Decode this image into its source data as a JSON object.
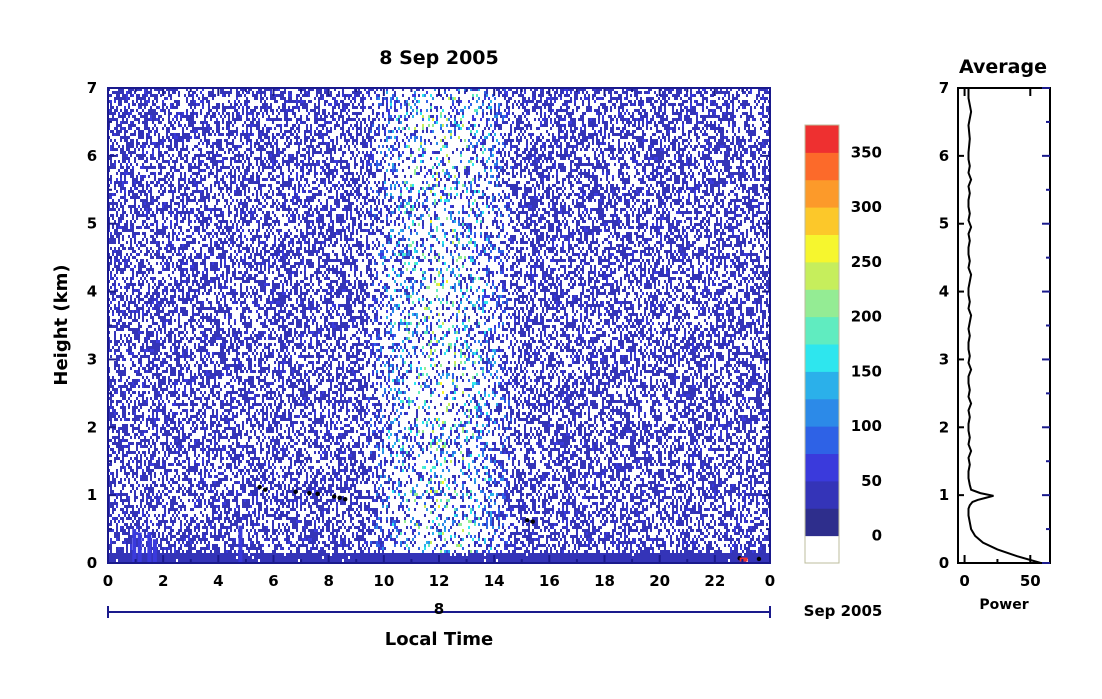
{
  "chart_data": [
    {
      "type": "heatmap",
      "title": "8 Sep 2005",
      "xlabel": "Local Time",
      "ylabel": "Height (km)",
      "xlim": [
        0,
        24
      ],
      "ylim": [
        0,
        7
      ],
      "x_ticks": [
        "0",
        "2",
        "4",
        "6",
        "8",
        "10",
        "12",
        "14",
        "16",
        "18",
        "20",
        "22",
        "0"
      ],
      "y_ticks": [
        "0",
        "1",
        "2",
        "3",
        "4",
        "5",
        "6",
        "7"
      ],
      "date_axis": {
        "day_label": "8",
        "month_year_label": "Sep 2005"
      },
      "colorbar": {
        "ticks": [
          "0",
          "50",
          "100",
          "150",
          "200",
          "250",
          "300",
          "350"
        ],
        "range": [
          -25,
          375
        ],
        "colors": [
          "#ffffff",
          "#2e2e8c",
          "#3434b8",
          "#3a3adc",
          "#2e62e6",
          "#2c8ae8",
          "#2bb0ea",
          "#2ee6ee",
          "#60ecc0",
          "#94ec94",
          "#c6ee5c",
          "#f6f62e",
          "#fcc82a",
          "#fc9a2a",
          "#fc6a2a",
          "#ee3030"
        ]
      },
      "features": {
        "background_level": 25,
        "midday_enhancement_center_hour": 12,
        "midday_enhancement_range_hours": [
          9,
          15
        ],
        "enhanced_level_max": 260,
        "near_ground_layer_top_km": 0.15,
        "near_ground_level": 40
      }
    },
    {
      "type": "line",
      "title": "Average",
      "xlabel": "Power",
      "xlim": [
        -5,
        65
      ],
      "ylim": [
        0,
        7
      ],
      "x_ticks": [
        "0",
        "50"
      ],
      "y_ticks": [
        "0",
        "1",
        "2",
        "3",
        "4",
        "5",
        "6",
        "7"
      ],
      "series": [
        {
          "x": [
            58,
            40,
            25,
            14,
            8,
            5,
            4,
            3,
            3,
            4,
            6,
            10,
            16,
            22,
            12,
            5,
            4,
            3,
            3,
            4,
            3,
            5,
            3,
            4,
            3,
            3,
            4,
            3,
            5,
            3,
            4,
            3,
            3,
            5,
            3,
            4,
            3,
            3,
            4,
            3,
            4,
            5,
            3,
            4,
            3,
            3,
            4,
            5,
            3,
            4,
            3,
            3,
            4,
            3,
            5,
            3,
            4,
            3,
            3,
            4,
            3,
            5,
            3,
            4,
            3,
            3,
            4,
            3,
            5,
            3,
            3
          ],
          "y": [
            0.0,
            0.1,
            0.2,
            0.3,
            0.4,
            0.5,
            0.6,
            0.7,
            0.8,
            0.85,
            0.9,
            0.93,
            0.96,
            0.99,
            1.03,
            1.08,
            1.15,
            1.25,
            1.35,
            1.45,
            1.55,
            1.65,
            1.75,
            1.85,
            1.95,
            2.05,
            2.15,
            2.25,
            2.35,
            2.45,
            2.55,
            2.65,
            2.75,
            2.85,
            2.95,
            3.05,
            3.15,
            3.25,
            3.35,
            3.45,
            3.55,
            3.65,
            3.75,
            3.85,
            3.95,
            4.05,
            4.15,
            4.25,
            4.35,
            4.45,
            4.55,
            4.65,
            4.75,
            4.85,
            4.95,
            5.05,
            5.15,
            5.25,
            5.35,
            5.45,
            5.55,
            5.65,
            5.75,
            5.85,
            5.95,
            6.05,
            6.25,
            6.45,
            6.65,
            6.85,
            7.0
          ]
        }
      ]
    }
  ]
}
